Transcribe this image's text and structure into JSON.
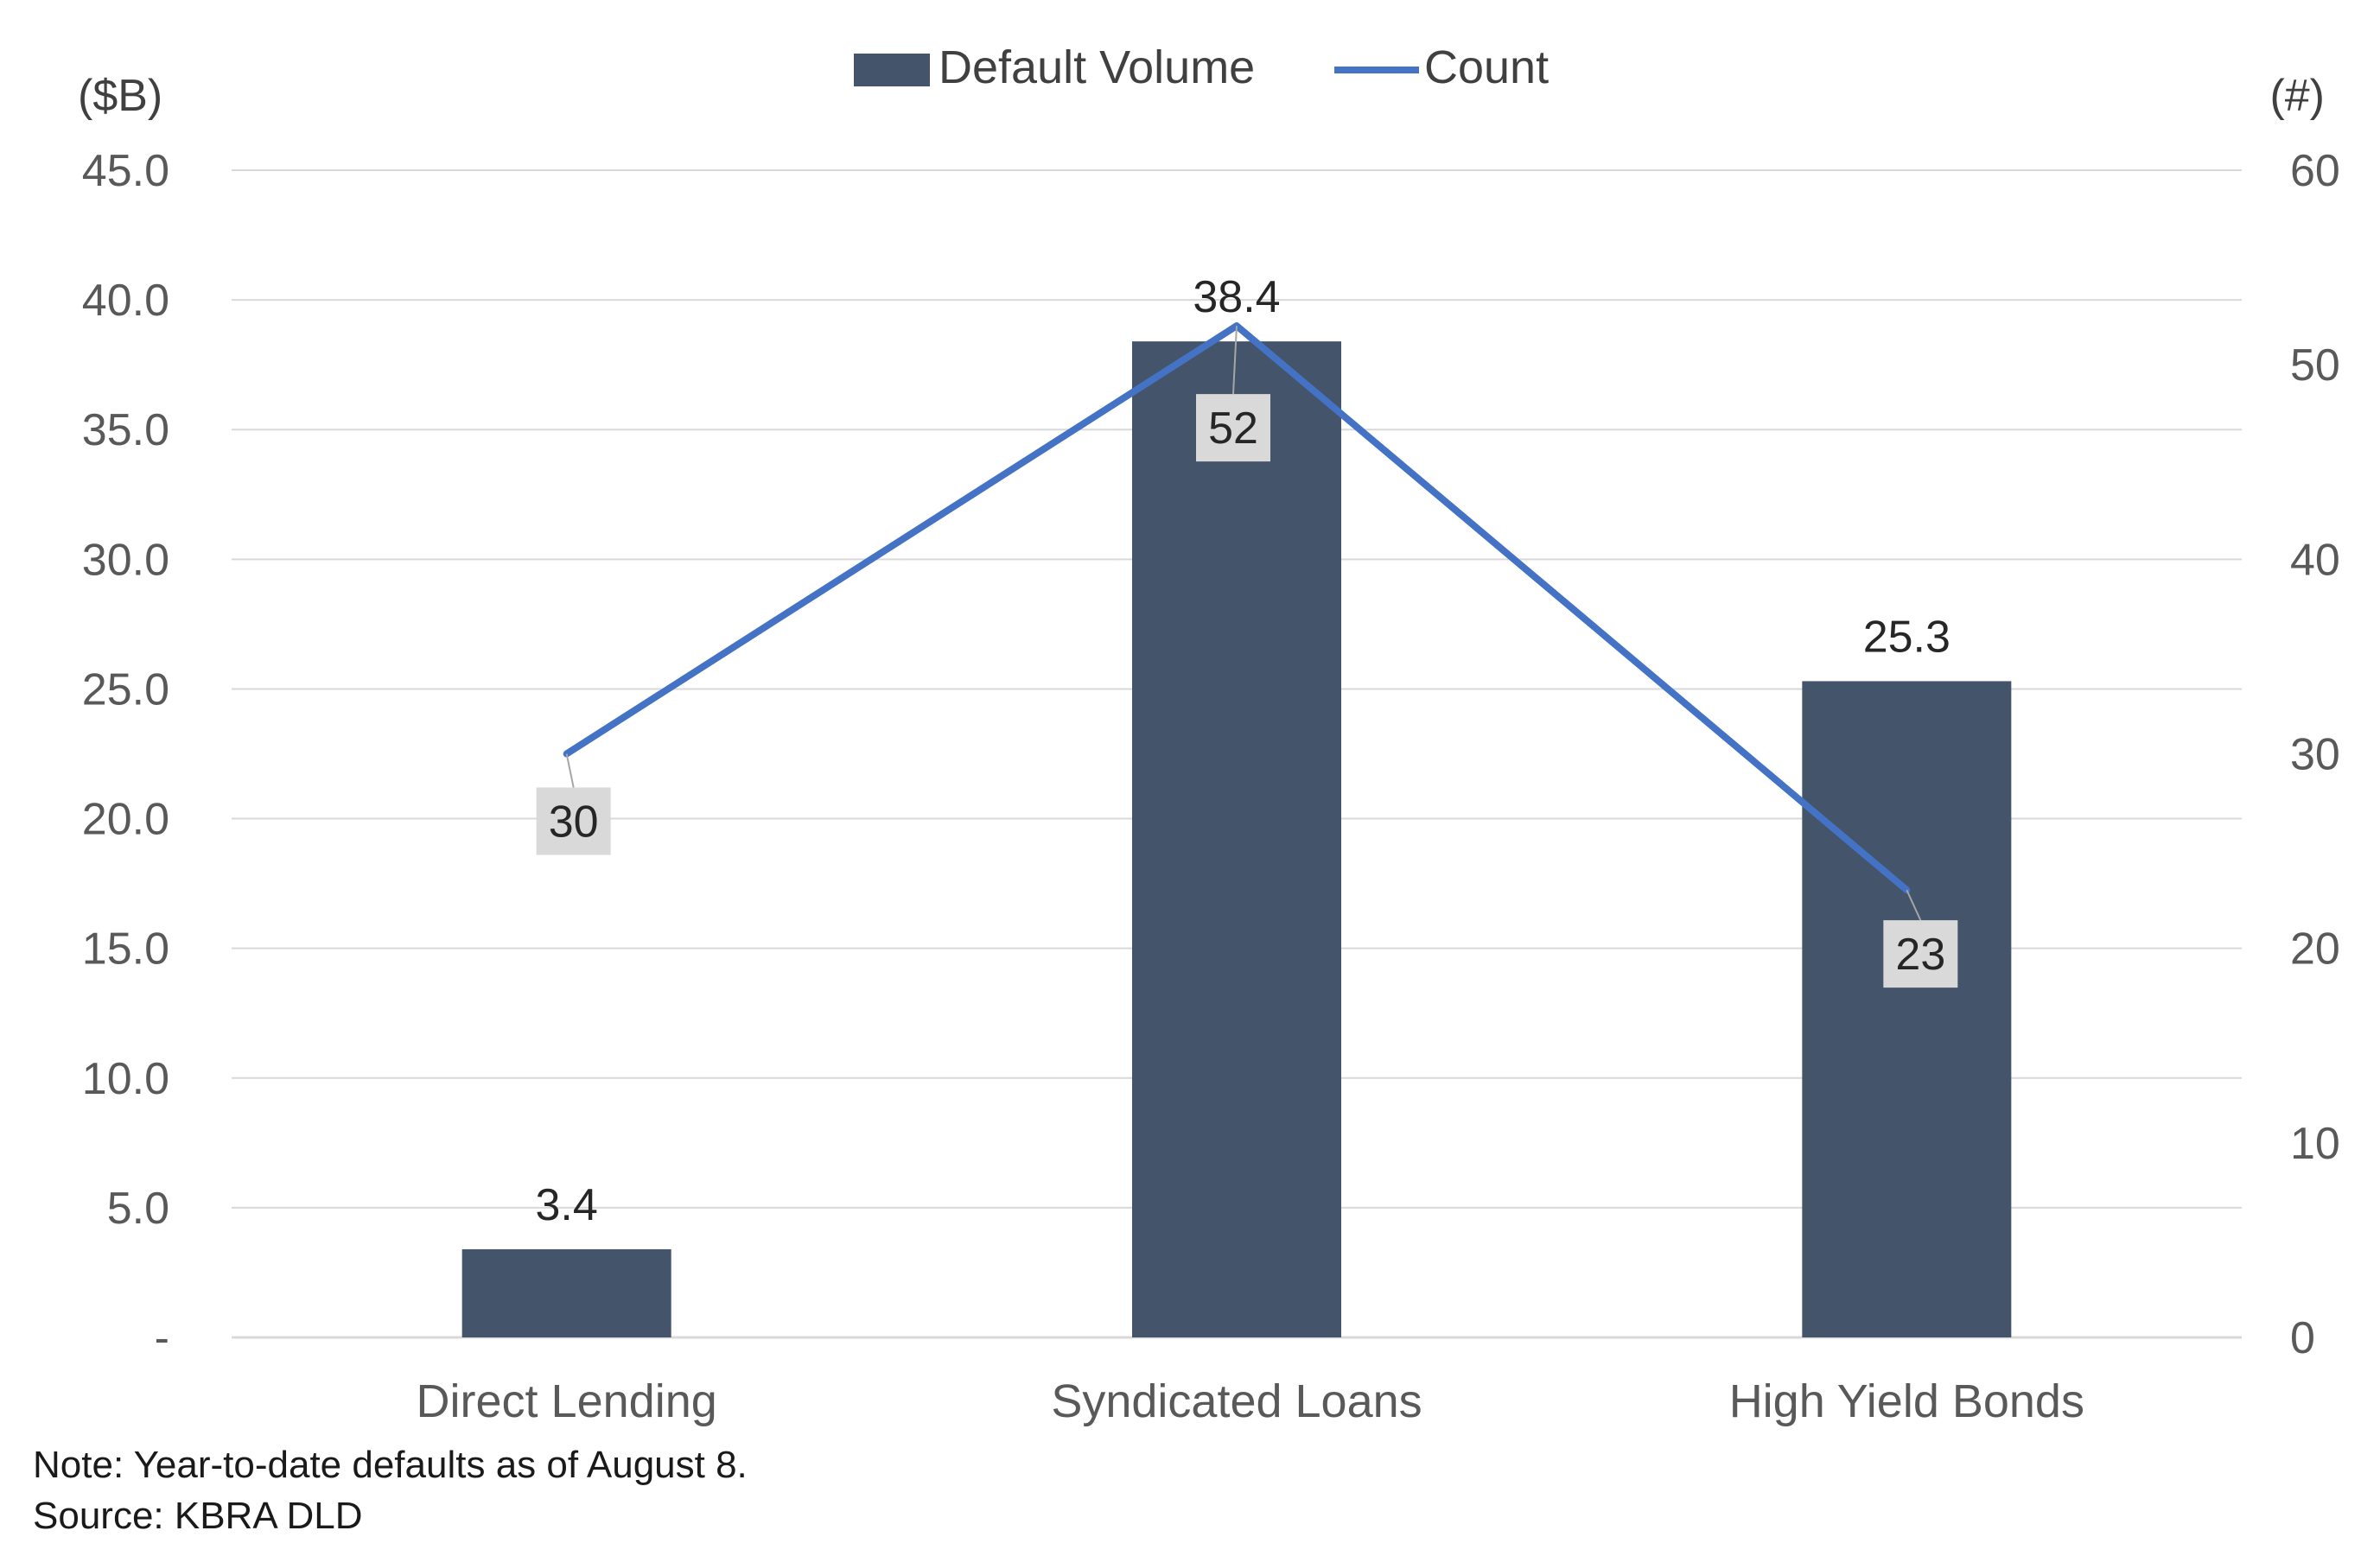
{
  "chart_data": {
    "type": "bar",
    "categories": [
      "Direct Lending",
      "Syndicated Loans",
      "High Yield Bonds"
    ],
    "series": [
      {
        "name": "Default Volume",
        "type": "bar",
        "axis": "left",
        "values": [
          3.4,
          38.4,
          25.3
        ],
        "labels": [
          "3.4",
          "38.4",
          "25.3"
        ],
        "color": "#44546a"
      },
      {
        "name": "Count",
        "type": "line",
        "axis": "right",
        "values": [
          30,
          52,
          23
        ],
        "labels": [
          "30",
          "52",
          "23"
        ],
        "color": "#4472c4"
      }
    ],
    "y_left": {
      "unit": "($B)",
      "ylim": [
        0,
        45
      ],
      "ticks": [
        0,
        5,
        10,
        15,
        20,
        25,
        30,
        35,
        40,
        45
      ],
      "tick_labels": [
        "-",
        "5.0",
        "10.0",
        "15.0",
        "20.0",
        "25.0",
        "30.0",
        "35.0",
        "40.0",
        "45.0"
      ]
    },
    "y_right": {
      "unit": "(#)",
      "ylim": [
        0,
        60
      ],
      "ticks": [
        0,
        10,
        20,
        30,
        40,
        50,
        60
      ],
      "tick_labels": [
        "0",
        "10",
        "20",
        "30",
        "40",
        "50",
        "60"
      ]
    },
    "grid": true,
    "legend": "top-center",
    "label_box_color": "#d9d9d9",
    "grid_color": "#d9d9d9"
  },
  "notes": {
    "note": "Note: Year-to-date defaults as of August 8.",
    "source": "Source: KBRA DLD"
  }
}
